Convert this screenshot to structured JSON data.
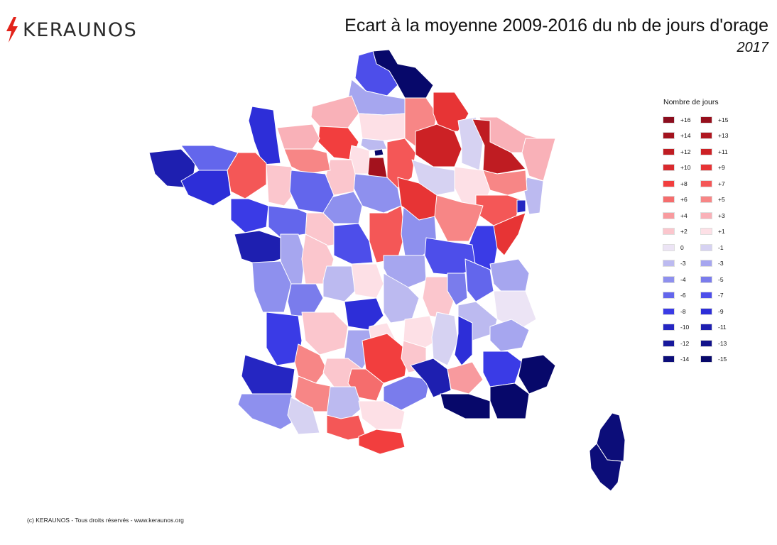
{
  "brand": {
    "name": "KERAUNOS",
    "bolt_color": "#e2231a"
  },
  "title": "Ecart à la moyenne 2009-2016 du nb de jours d'orage",
  "subtitle": "2017",
  "legend": {
    "title": "Nombre de jours",
    "entries": [
      {
        "label": "+16",
        "color": "#8b0d1e"
      },
      {
        "label": "+15",
        "color": "#960f1c"
      },
      {
        "label": "+14",
        "color": "#a3121d"
      },
      {
        "label": "+13",
        "color": "#b01720"
      },
      {
        "label": "+12",
        "color": "#bf1c22"
      },
      {
        "label": "+11",
        "color": "#cc2125"
      },
      {
        "label": "+10",
        "color": "#d92a2e"
      },
      {
        "label": "+9",
        "color": "#e73435"
      },
      {
        "label": "+8",
        "color": "#f23e3e"
      },
      {
        "label": "+7",
        "color": "#f45757"
      },
      {
        "label": "+6",
        "color": "#f56d6d"
      },
      {
        "label": "+5",
        "color": "#f78686"
      },
      {
        "label": "+4",
        "color": "#f89a9e"
      },
      {
        "label": "+3",
        "color": "#f9b1b8"
      },
      {
        "label": "+2",
        "color": "#fbc6cd"
      },
      {
        "label": "+1",
        "color": "#fde0e6"
      },
      {
        "label": "0",
        "color": "#ece4f5"
      },
      {
        "label": "-1",
        "color": "#d6d2f2"
      },
      {
        "label": "-3",
        "color": "#bcbaf0"
      },
      {
        "label": "-3",
        "color": "#a6a6ef"
      },
      {
        "label": "-4",
        "color": "#8e90ee"
      },
      {
        "label": "-5",
        "color": "#7a7cec"
      },
      {
        "label": "-6",
        "color": "#6366ec"
      },
      {
        "label": "-7",
        "color": "#4d4eea"
      },
      {
        "label": "-8",
        "color": "#3a3be6"
      },
      {
        "label": "-9",
        "color": "#2d2ed8"
      },
      {
        "label": "-10",
        "color": "#2526c2"
      },
      {
        "label": "-11",
        "color": "#1e1fb0"
      },
      {
        "label": "-12",
        "color": "#17189c"
      },
      {
        "label": "-13",
        "color": "#11128a"
      },
      {
        "label": "-14",
        "color": "#0c0d79"
      },
      {
        "label": "-15",
        "color": "#07086a"
      }
    ]
  },
  "footer": "(c) KERAUNOS - Tous droits réservés - www.keraunos.org"
}
